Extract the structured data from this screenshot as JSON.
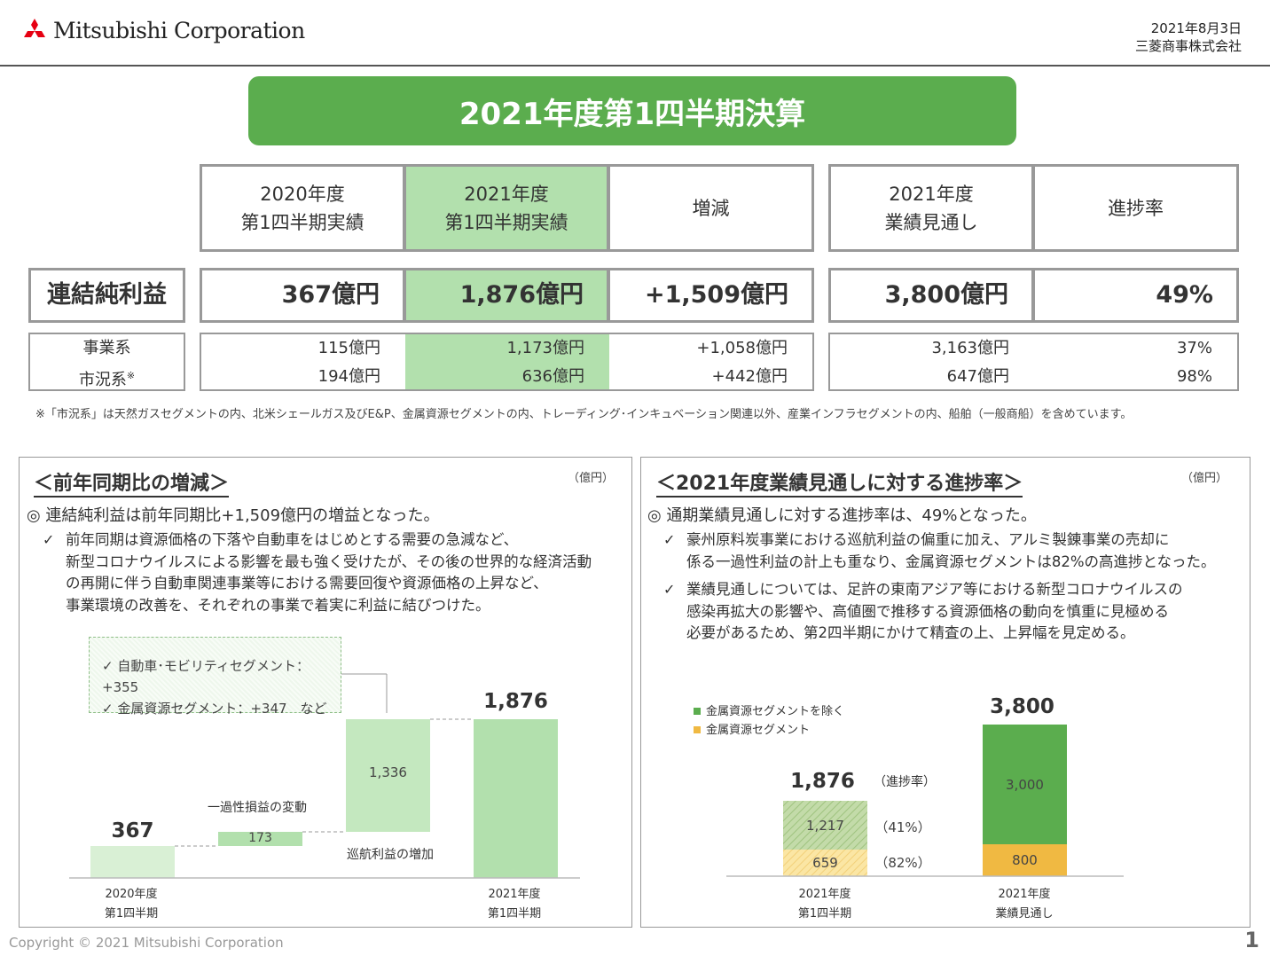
{
  "header": {
    "logo_text": "Mitsubishi Corporation",
    "date": "2021年8月3日",
    "company": "三菱商事株式会社"
  },
  "title": "2021年度第1四半期決算",
  "table": {
    "col1": [
      "2020年度",
      "第1四半期実績"
    ],
    "col2": [
      "2021年度",
      "第1四半期実績"
    ],
    "col3": "増減",
    "col4": [
      "2021年度",
      "業績見通し"
    ],
    "col5": "進捗率",
    "row_label": "連結純利益",
    "row_values": [
      "367億円",
      "1,876億円",
      "+1,509億円",
      "3,800億円",
      "49%"
    ],
    "sub_labels": [
      "事業系",
      "市況系"
    ],
    "sub_label_mark": "※",
    "sub_col1": [
      "115億円",
      "194億円"
    ],
    "sub_col2": [
      "1,173億円",
      "636億円"
    ],
    "sub_col3": [
      "+1,058億円",
      "+442億円"
    ],
    "sub_col4": [
      "3,163億円",
      "647億円"
    ],
    "sub_col5": [
      "37%",
      "98%"
    ]
  },
  "footnote": "※「市況系」は天然ガスセグメントの内、北米シェールガス及びE&P、金属資源セグメントの内、トレーディング･インキュベーション関連以外、産業インフラセグメントの内、船舶（一般商船）を含めています。",
  "left_panel": {
    "heading": "＜前年同期比の増減＞",
    "unit": "（億円）",
    "bullet": "◎ 連結純利益は前年同期比+1,509億円の増益となった。",
    "check": "✓",
    "lines": [
      "前年同期は資源価格の下落や自動車をはじめとする需要の急減など、",
      "新型コロナウイルスによる影響を最も強く受けたが、その後の世界的な経済活動",
      "の再開に伴う自動車関連事業等における需要回復や資源価格の上昇など、",
      "事業環境の改善を、それぞれの事業で着実に利益に結びつけた。"
    ],
    "note_lines": [
      "✓ 自動車･モビリティセグメント：+355",
      "✓ 金属資源セグメント：+347　など"
    ],
    "bars": {
      "start_value": "367",
      "one_off_label": "一過性損益の変動",
      "one_off_value": "173",
      "recurring_value": "1,336",
      "recurring_label": "巡航利益の増加",
      "end_value": "1,876"
    },
    "x_labels": [
      [
        "2020年度",
        "第1四半期"
      ],
      [
        "2021年度",
        "第1四半期"
      ]
    ]
  },
  "right_panel": {
    "heading": "＜2021年度業績見通しに対する進捗率＞",
    "unit": "（億円）",
    "bullet": "◎ 通期業績見通しに対する進捗率は、49%となった。",
    "check": "✓",
    "item1": [
      "豪州原料炭事業における巡航利益の偏重に加え、アルミ製錬事業の売却に",
      "係る一過性利益の計上も重なり、金属資源セグメントは82%の高進捗となった。"
    ],
    "item2": [
      "業績見通しについては、足許の東南アジア等における新型コロナウイルスの",
      "感染再拡大の影響や、高値圏で推移する資源価格の動向を慎重に見極める",
      "必要があるため、第2四半期にかけて精査の上、上昇幅を見定める。"
    ],
    "legend": [
      "金属資源セグメントを除く",
      "金属資源セグメント"
    ],
    "colors": {
      "other": "#5bad4e",
      "metal": "#f0b942"
    },
    "progress_label": "（進捗率）",
    "q1_total": "1,876",
    "q1_other": "1,217",
    "q1_metal": "659",
    "q1_other_pct": "（41%）",
    "q1_metal_pct": "（82%）",
    "fy_total": "3,800",
    "fy_other": "3,000",
    "fy_metal": "800",
    "x_labels": [
      [
        "2021年度",
        "第1四半期"
      ],
      [
        "2021年度",
        "業績見通し"
      ]
    ]
  },
  "footer": {
    "copyright": "Copyright © 2021 Mitsubishi Corporation",
    "page": "1"
  }
}
